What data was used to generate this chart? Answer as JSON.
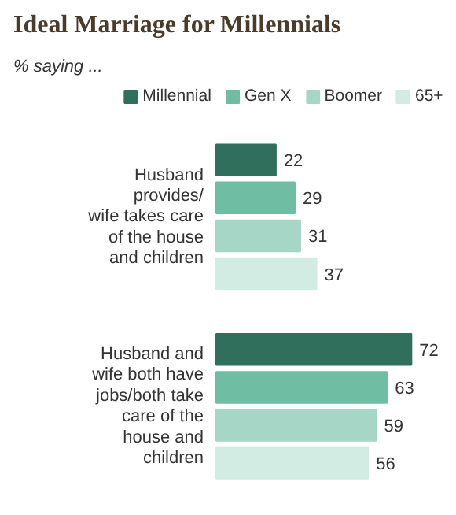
{
  "chart_data": {
    "type": "bar",
    "orientation": "horizontal",
    "title": "Ideal Marriage for Millennials",
    "subtitle": "% saying ...",
    "categories": [
      "Husband\nprovides/\nwife takes care\nof the house\nand children",
      "Husband and\nwife both have\njobs/both take\ncare of the\nhouse and\nchildren"
    ],
    "series": [
      {
        "name": "Millennial",
        "color": "#2f6f5c",
        "values": [
          22,
          72
        ]
      },
      {
        "name": "Gen X",
        "color": "#6fbea3",
        "values": [
          29,
          63
        ]
      },
      {
        "name": "Boomer",
        "color": "#a6d6c6",
        "values": [
          31,
          59
        ]
      },
      {
        "name": "65+",
        "color": "#d2ebe3",
        "values": [
          37,
          56
        ]
      }
    ],
    "data_labels": true,
    "legend": "top"
  }
}
